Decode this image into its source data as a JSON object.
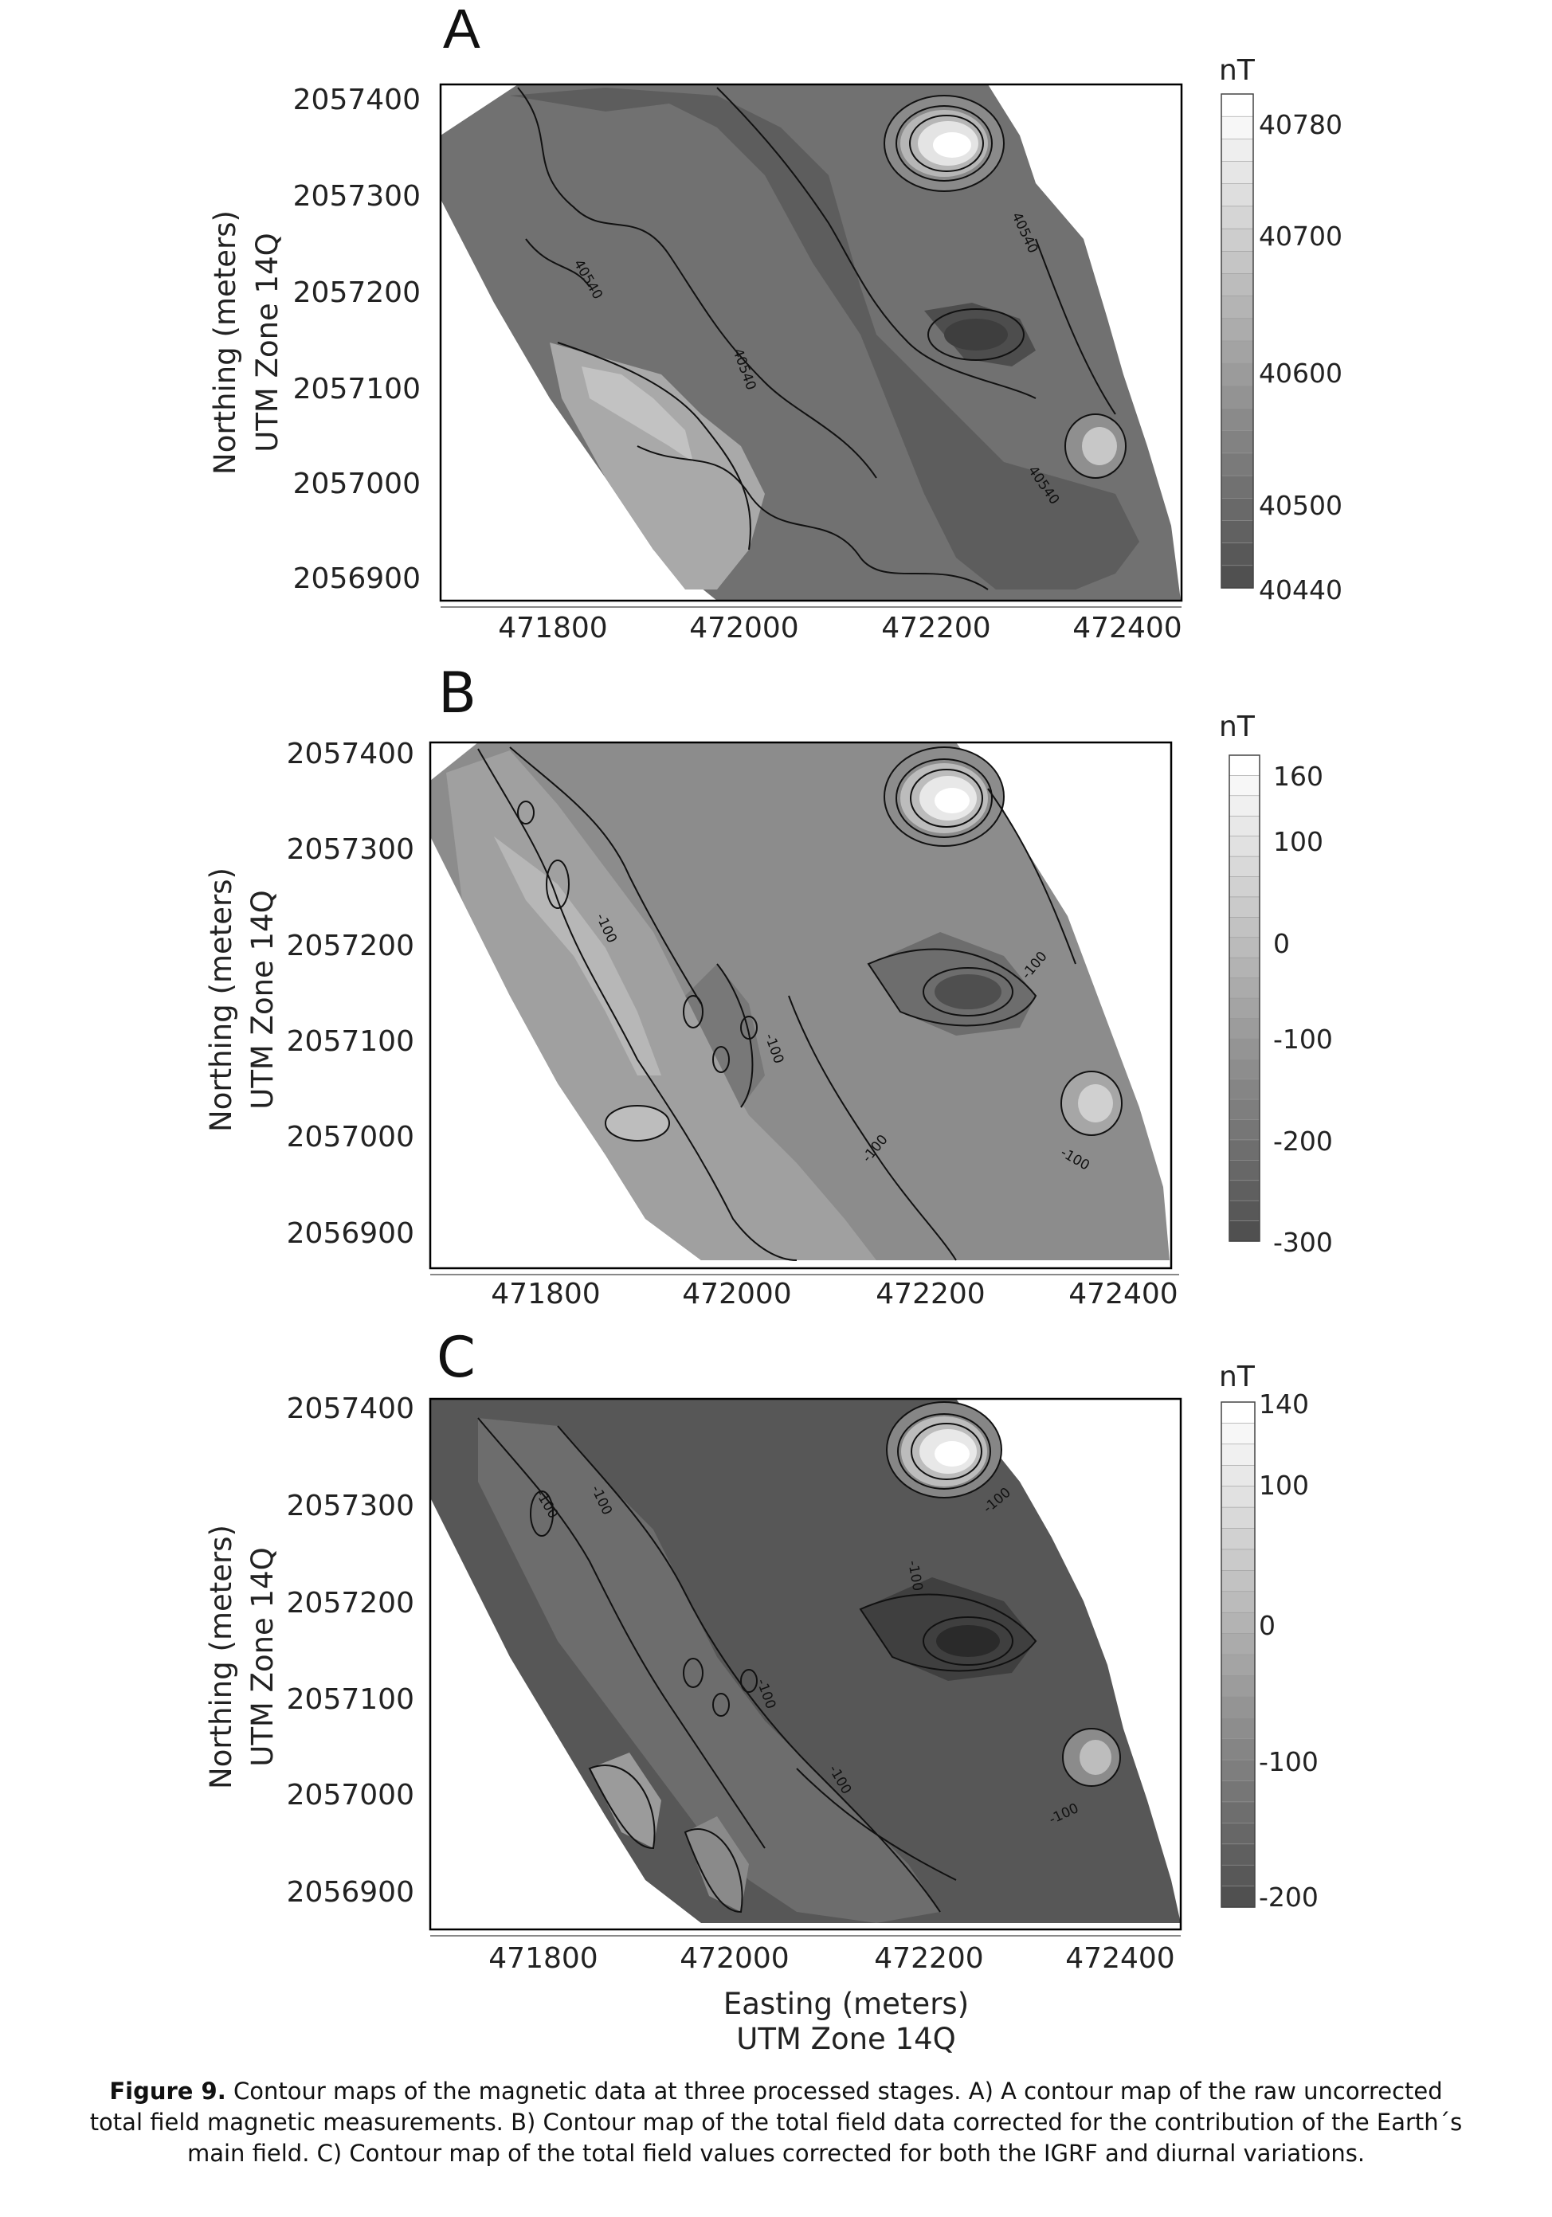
{
  "panels": [
    {
      "id": "a",
      "letter": "A",
      "ylabel_line1": "Northing (meters)",
      "ylabel_line2": "UTM Zone 14Q",
      "yticks": [
        "2057400",
        "2057300",
        "2057200",
        "2057100",
        "2057000",
        "2056900"
      ],
      "xticks": [
        "471800",
        "472000",
        "472200",
        "472400"
      ],
      "colorbar_unit": "nT",
      "colorbar_ticks": [
        "40780",
        "40700",
        "40600",
        "40500",
        "40440"
      ],
      "contour_labels": [
        "40540",
        "40540",
        "40540",
        "40540"
      ],
      "xlabel_line1": "",
      "xlabel_line2": ""
    },
    {
      "id": "b",
      "letter": "B",
      "ylabel_line1": "Northing (meters)",
      "ylabel_line2": "UTM Zone 14Q",
      "yticks": [
        "2057400",
        "2057300",
        "2057200",
        "2057100",
        "2057000",
        "2056900"
      ],
      "xticks": [
        "471800",
        "472000",
        "472200",
        "472400"
      ],
      "colorbar_unit": "nT",
      "colorbar_ticks": [
        "160",
        "100",
        "0",
        "-100",
        "-200",
        "-300"
      ],
      "contour_labels": [
        "-100",
        "-100",
        "-100",
        "-100",
        "-100"
      ],
      "xlabel_line1": "",
      "xlabel_line2": ""
    },
    {
      "id": "c",
      "letter": "C",
      "ylabel_line1": "Northing (meters)",
      "ylabel_line2": "UTM Zone 14Q",
      "yticks": [
        "2057400",
        "2057300",
        "2057200",
        "2057100",
        "2057000",
        "2056900"
      ],
      "xticks": [
        "471800",
        "472000",
        "472200",
        "472400"
      ],
      "colorbar_unit": "nT",
      "colorbar_ticks": [
        "140",
        "100",
        "0",
        "-100",
        "-200"
      ],
      "contour_labels": [
        "-100",
        "-100",
        "-100",
        "-100",
        "-100",
        "-100",
        "-100"
      ],
      "xlabel_line1": "Easting (meters)",
      "xlabel_line2": "UTM Zone 14Q"
    }
  ],
  "caption": {
    "label": "Figure 9.",
    "line1": " Contour maps of the magnetic data at three processed stages. A) A contour map of the raw uncorrected",
    "line2": "total field magnetic measurements. B) Contour map of the total field data corrected for the contribution of the Earth´s",
    "line3": "main field. C) Contour map of the total field values corrected for both the IGRF and diurnal variations."
  },
  "colors": {
    "frame": "#000000",
    "base_a": "#6e6e6e",
    "base_b": "#8c8c8c",
    "base_c": "#525252"
  }
}
